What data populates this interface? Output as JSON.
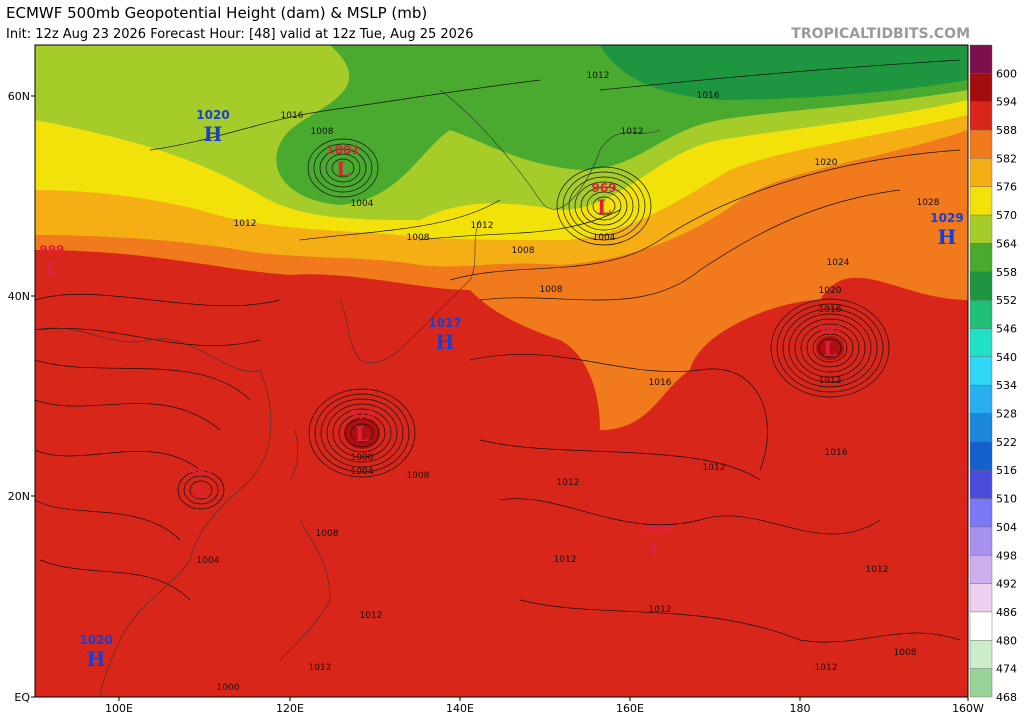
{
  "header": {
    "title": "ECMWF 500mb Geopotential Height (dam) & MSLP (mb)",
    "subtitle": "Init: 12z Aug 23 2026   Forecast Hour: [48]   valid at 12z Tue, Aug 25 2026",
    "watermark": "TROPICALTIDBITS.COM"
  },
  "latitudes": [
    "60N",
    "40N",
    "20N",
    "EQ"
  ],
  "longitudes": [
    "100E",
    "120E",
    "140E",
    "160E",
    "180",
    "160W"
  ],
  "colorbar": [
    "600",
    "594",
    "588",
    "582",
    "576",
    "570",
    "564",
    "558",
    "552",
    "546",
    "540",
    "534",
    "528",
    "522",
    "516",
    "510",
    "504",
    "498",
    "492",
    "486",
    "480",
    "474",
    "468"
  ],
  "centers": [
    {
      "letter": "H",
      "value": "1020"
    },
    {
      "letter": "L",
      "value": "1001"
    },
    {
      "letter": "L",
      "value": "969"
    },
    {
      "letter": "H",
      "value": "1029"
    },
    {
      "letter": "L",
      "value": "999"
    },
    {
      "letter": "H",
      "value": "1017"
    },
    {
      "letter": "L",
      "value": "992"
    },
    {
      "letter": "L",
      "value": "978"
    },
    {
      "letter": "L",
      "value": "991"
    },
    {
      "letter": "L",
      "value": "1008"
    },
    {
      "letter": "H",
      "value": "1020"
    }
  ],
  "isobar_labels": [
    "1016",
    "1012",
    "1008",
    "1004",
    "1012",
    "1008",
    "1012",
    "1016",
    "1012",
    "1004",
    "1008",
    "1008",
    "1020",
    "1028",
    "1024",
    "1020",
    "1016",
    "1012",
    "1016",
    "1016",
    "1000",
    "1004",
    "1008",
    "1012",
    "1012",
    "1008",
    "1004",
    "1012",
    "1012",
    "1012",
    "1012",
    "1012",
    "1008",
    "1012",
    "1000"
  ]
}
